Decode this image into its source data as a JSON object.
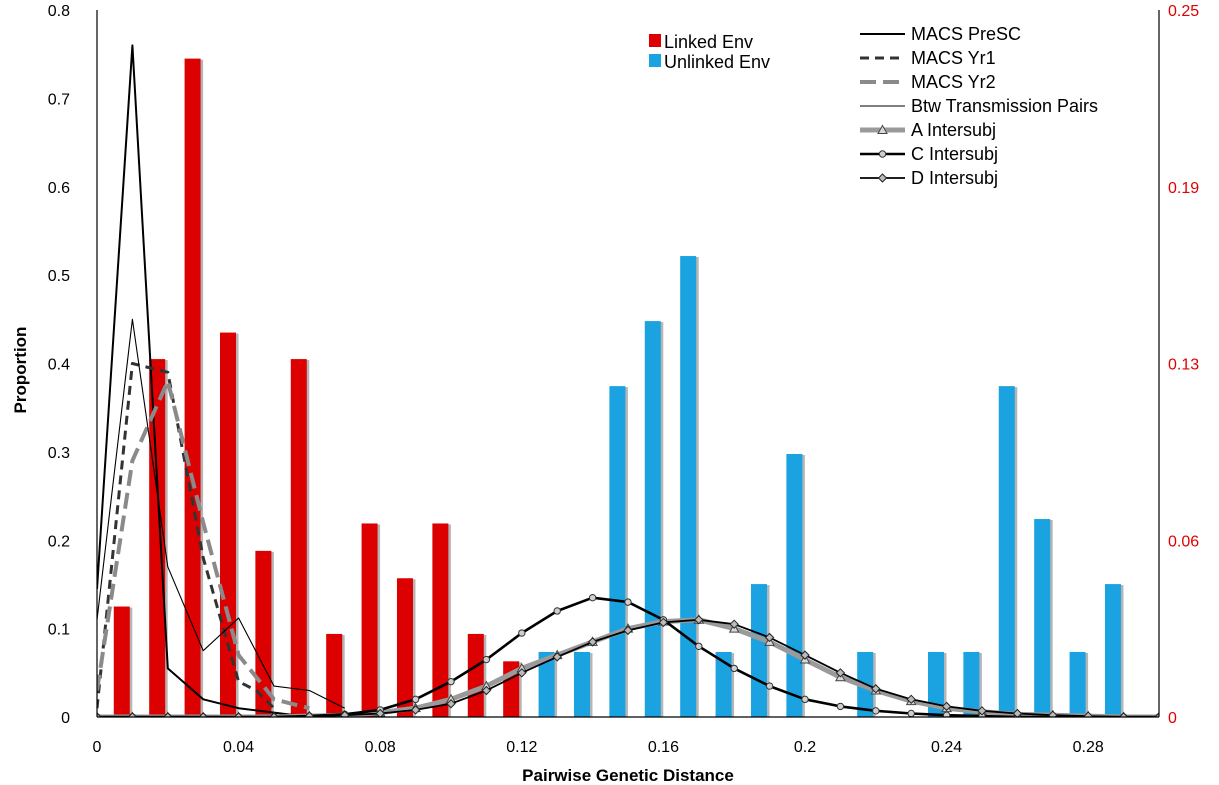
{
  "chart_data": {
    "type": "bar",
    "xlabel": "Pairwise Genetic Distance",
    "ylabel": "Proportion",
    "xlim": [
      0,
      0.3
    ],
    "ylim_left": [
      0,
      0.8
    ],
    "ylim_right": [
      0,
      0.25
    ],
    "x_ticks": [
      "0",
      "0.04",
      "0.08",
      "0.12",
      "0.16",
      "0.2",
      "0.24",
      "0.28"
    ],
    "y_ticks_left": [
      "0",
      "0.1",
      "0.2",
      "0.3",
      "0.4",
      "0.5",
      "0.6",
      "0.7",
      "0.8"
    ],
    "y_ticks_right": [
      {
        "label": "0",
        "value": 0
      },
      {
        "label": "0.06",
        "value": 0.0625
      },
      {
        "label": "0.13",
        "value": 0.125
      },
      {
        "label": "0.19",
        "value": 0.1875
      },
      {
        "label": "0.25",
        "value": 0.25
      }
    ],
    "bar_series": [
      {
        "name": "Linked Env",
        "color": "#dd0000",
        "axis": "left",
        "x": [
          0.007,
          0.017,
          0.027,
          0.037,
          0.047,
          0.057,
          0.067,
          0.077,
          0.087,
          0.097,
          0.107,
          0.117
        ],
        "values": [
          0.125,
          0.405,
          0.745,
          0.435,
          0.188,
          0.405,
          0.094,
          0.219,
          0.157,
          0.219,
          0.094,
          0.063
        ]
      },
      {
        "name": "Unlinked Env",
        "color": "#1aa3e0",
        "axis": "right",
        "x": [
          0.127,
          0.137,
          0.147,
          0.157,
          0.167,
          0.177,
          0.187,
          0.197,
          0.207,
          0.217,
          0.227,
          0.237,
          0.247,
          0.257,
          0.267,
          0.277,
          0.287
        ],
        "values": [
          0.023,
          0.023,
          0.117,
          0.14,
          0.163,
          0.023,
          0.047,
          0.093,
          0.0,
          0.023,
          0.0,
          0.023,
          0.023,
          0.117,
          0.07,
          0.023,
          0.047
        ]
      }
    ],
    "line_series": [
      {
        "name": "MACS PreSC",
        "axis": "left",
        "style": "solid-medium",
        "x": [
          0,
          0.01,
          0.02,
          0.03,
          0.04,
          0.05,
          0.06
        ],
        "values": [
          0.145,
          0.76,
          0.055,
          0.02,
          0.01,
          0.005,
          0.0
        ]
      },
      {
        "name": "MACS Yr1",
        "axis": "left",
        "style": "dashed",
        "x": [
          0,
          0.01,
          0.02,
          0.03,
          0.04,
          0.045,
          0.05
        ],
        "values": [
          0.01,
          0.4,
          0.39,
          0.18,
          0.04,
          0.03,
          0.01
        ]
      },
      {
        "name": "MACS Yr2",
        "axis": "left",
        "style": "gray-dashed",
        "x": [
          0,
          0.01,
          0.02,
          0.03,
          0.04,
          0.05,
          0.06
        ],
        "values": [
          0.03,
          0.29,
          0.38,
          0.22,
          0.07,
          0.02,
          0.01
        ]
      },
      {
        "name": "Btw Transmission Pairs",
        "axis": "left",
        "style": "solid-thin",
        "x": [
          0,
          0.01,
          0.02,
          0.03,
          0.04,
          0.05,
          0.06,
          0.07
        ],
        "values": [
          0.11,
          0.45,
          0.17,
          0.075,
          0.112,
          0.035,
          0.03,
          0.01
        ]
      },
      {
        "name": "A Intersubj",
        "axis": "left",
        "style": "gray-thick-triangle",
        "x": [
          0,
          0.01,
          0.02,
          0.03,
          0.04,
          0.05,
          0.06,
          0.07,
          0.08,
          0.09,
          0.1,
          0.11,
          0.12,
          0.13,
          0.14,
          0.15,
          0.16,
          0.17,
          0.18,
          0.19,
          0.2,
          0.21,
          0.22,
          0.23,
          0.24,
          0.25,
          0.26,
          0.27,
          0.28,
          0.29,
          0.3
        ],
        "values": [
          0,
          0,
          0,
          0,
          0,
          0,
          0.001,
          0.002,
          0.005,
          0.01,
          0.02,
          0.035,
          0.055,
          0.07,
          0.085,
          0.1,
          0.108,
          0.11,
          0.1,
          0.085,
          0.065,
          0.045,
          0.03,
          0.018,
          0.01,
          0.006,
          0.003,
          0.002,
          0.001,
          0,
          0
        ]
      },
      {
        "name": "C Intersubj",
        "axis": "left",
        "style": "black-thick-circle",
        "x": [
          0,
          0.01,
          0.02,
          0.03,
          0.04,
          0.05,
          0.06,
          0.07,
          0.08,
          0.09,
          0.1,
          0.11,
          0.12,
          0.13,
          0.14,
          0.15,
          0.16,
          0.17,
          0.18,
          0.19,
          0.2,
          0.21,
          0.22,
          0.23,
          0.24,
          0.25,
          0.26,
          0.27,
          0.28,
          0.29,
          0.3
        ],
        "values": [
          0,
          0,
          0,
          0,
          0,
          0,
          0.001,
          0.003,
          0.008,
          0.02,
          0.04,
          0.065,
          0.095,
          0.12,
          0.135,
          0.13,
          0.11,
          0.08,
          0.055,
          0.035,
          0.02,
          0.012,
          0.007,
          0.004,
          0.002,
          0.001,
          0,
          0,
          0,
          0,
          0
        ]
      },
      {
        "name": "D Intersubj",
        "axis": "left",
        "style": "black-diamond",
        "x": [
          0,
          0.01,
          0.02,
          0.03,
          0.04,
          0.05,
          0.06,
          0.07,
          0.08,
          0.09,
          0.1,
          0.11,
          0.12,
          0.13,
          0.14,
          0.15,
          0.16,
          0.17,
          0.18,
          0.19,
          0.2,
          0.21,
          0.22,
          0.23,
          0.24,
          0.25,
          0.26,
          0.27,
          0.28,
          0.29,
          0.3
        ],
        "values": [
          0,
          0,
          0,
          0,
          0,
          0,
          0.001,
          0.002,
          0.004,
          0.008,
          0.015,
          0.03,
          0.05,
          0.068,
          0.085,
          0.098,
          0.107,
          0.11,
          0.105,
          0.09,
          0.07,
          0.05,
          0.032,
          0.02,
          0.012,
          0.007,
          0.004,
          0.002,
          0.001,
          0,
          0
        ]
      }
    ],
    "bar_legend_placement": "top-center",
    "line_legend_placement": "top-right",
    "grid": false
  }
}
